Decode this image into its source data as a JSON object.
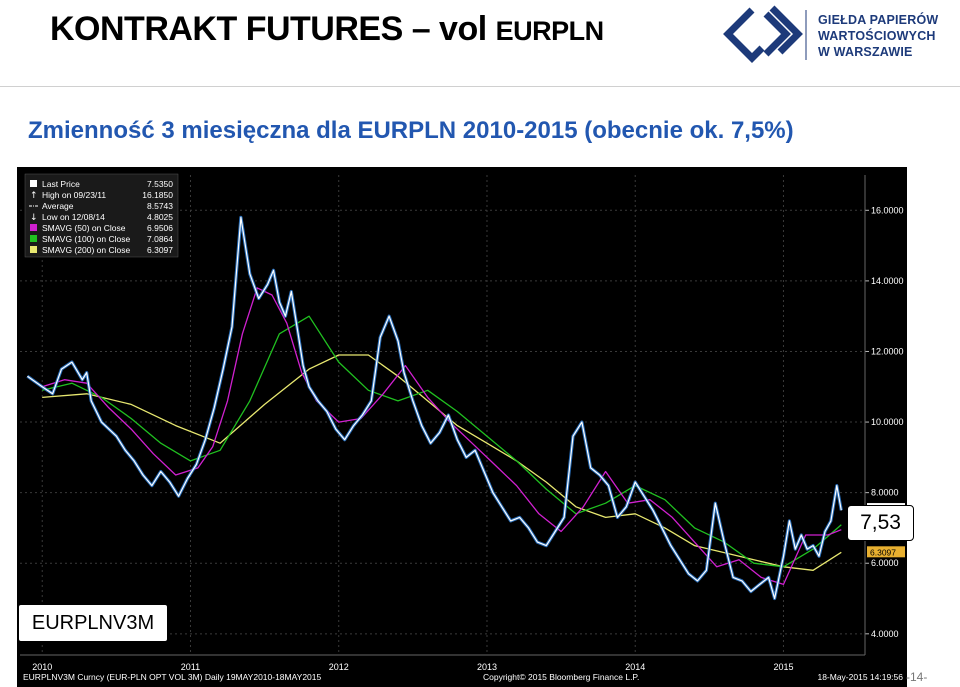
{
  "header": {
    "title_main": "KONTRAKT FUTURES – vol",
    "title_tail": "EURPLN",
    "logo_lines": [
      "GIEŁDA PAPIERÓW",
      "WARTOŚCIOWYCH",
      "W WARSZAWIE"
    ],
    "brand_color": "#1d3a7a"
  },
  "subtitle": "Zmienność 3 miesięczna dla EURPLN 2010-2015 (obecnie ok. 7,5%)",
  "callout": "7,53",
  "ticker_box": "EURPLNV3M",
  "page_number": "-14-",
  "chart_data": {
    "type": "line",
    "ylim": [
      3.4,
      17.0
    ],
    "xlim": [
      2009.85,
      2015.55
    ],
    "y_ticks": [
      4,
      6,
      8,
      10,
      12,
      14,
      16
    ],
    "y_tick_labels": [
      "4.0000",
      "6.0000",
      "8.0000",
      "10.0000",
      "12.0000",
      "14.0000",
      "16.0000"
    ],
    "x_ticks": [
      2010,
      2011,
      2012,
      2013,
      2014,
      2015
    ],
    "x_tick_labels": [
      "2010",
      "2011",
      "2012",
      "2013",
      "2014",
      "2015"
    ],
    "grid": true,
    "background": "#000000",
    "legend_position": "top-left",
    "legend": [
      {
        "label": "Last Price",
        "value": "7.5350",
        "color": "#ffffff",
        "marker": "square"
      },
      {
        "label": "High on 09/23/11",
        "value": "16.1850",
        "color": "#ffffff",
        "marker": "up-arrow"
      },
      {
        "label": "Average",
        "value": "8.5743",
        "color": "#ffffff",
        "marker": "dash-dot"
      },
      {
        "label": "Low on 12/08/14",
        "value": "4.8025",
        "color": "#ffffff",
        "marker": "down-arrow"
      },
      {
        "label": "SMAVG (50) on Close",
        "value": "6.9506",
        "color": "#d020d0",
        "marker": "square"
      },
      {
        "label": "SMAVG (100) on Close",
        "value": "7.0864",
        "color": "#20c020",
        "marker": "square"
      },
      {
        "label": "SMAVG (200) on Close",
        "value": "6.3097",
        "color": "#e8e870",
        "marker": "square"
      }
    ],
    "last_value_tags": [
      {
        "label": "6.3097",
        "value": 6.3097,
        "color": "#e8b030"
      },
      {
        "label": "7.5350",
        "value": 7.535,
        "color": "#ffffff"
      }
    ],
    "series": [
      {
        "name": "Last Price",
        "color": "#ffffff",
        "x": [
          2009.9,
          2010.0,
          2010.07,
          2010.13,
          2010.2,
          2010.27,
          2010.3,
          2010.33,
          2010.4,
          2010.45,
          2010.5,
          2010.56,
          2010.62,
          2010.68,
          2010.74,
          2010.8,
          2010.86,
          2010.92,
          2010.98,
          2011.04,
          2011.1,
          2011.16,
          2011.22,
          2011.28,
          2011.34,
          2011.4,
          2011.46,
          2011.52,
          2011.56,
          2011.6,
          2011.64,
          2011.68,
          2011.73,
          2011.76,
          2011.8,
          2011.86,
          2011.92,
          2011.98,
          2012.04,
          2012.1,
          2012.16,
          2012.22,
          2012.28,
          2012.34,
          2012.4,
          2012.44,
          2012.5,
          2012.56,
          2012.62,
          2012.68,
          2012.74,
          2012.8,
          2012.86,
          2012.92,
          2012.98,
          2013.04,
          2013.1,
          2013.16,
          2013.22,
          2013.28,
          2013.34,
          2013.4,
          2013.46,
          2013.52,
          2013.58,
          2013.64,
          2013.7,
          2013.76,
          2013.82,
          2013.88,
          2013.94,
          2014.0,
          2014.06,
          2014.12,
          2014.18,
          2014.24,
          2014.3,
          2014.36,
          2014.42,
          2014.48,
          2014.54,
          2014.6,
          2014.66,
          2014.72,
          2014.78,
          2014.84,
          2014.9,
          2014.94,
          2015.0,
          2015.04,
          2015.08,
          2015.12,
          2015.16,
          2015.2,
          2015.24,
          2015.28,
          2015.32,
          2015.36,
          2015.39
        ],
        "y": [
          11.3,
          11.0,
          10.8,
          11.5,
          11.7,
          11.2,
          11.4,
          10.6,
          10.0,
          9.8,
          9.6,
          9.2,
          8.9,
          8.5,
          8.2,
          8.6,
          8.3,
          7.9,
          8.4,
          8.8,
          9.5,
          10.4,
          11.5,
          12.7,
          15.8,
          14.2,
          13.5,
          13.9,
          14.3,
          13.4,
          13.0,
          13.7,
          12.4,
          11.6,
          11.0,
          10.6,
          10.3,
          9.8,
          9.5,
          9.9,
          10.2,
          10.6,
          12.4,
          13.0,
          12.3,
          11.4,
          10.6,
          9.9,
          9.4,
          9.7,
          10.2,
          9.5,
          9.0,
          9.2,
          8.6,
          8.0,
          7.6,
          7.2,
          7.3,
          7.0,
          6.6,
          6.5,
          6.9,
          7.3,
          9.6,
          10.0,
          8.7,
          8.5,
          8.2,
          7.3,
          7.6,
          8.3,
          7.9,
          7.5,
          7.0,
          6.5,
          6.1,
          5.7,
          5.5,
          5.8,
          7.7,
          6.6,
          5.6,
          5.5,
          5.2,
          5.4,
          5.6,
          5.0,
          6.2,
          7.2,
          6.4,
          6.8,
          6.4,
          6.5,
          6.2,
          6.9,
          7.2,
          8.2,
          7.5
        ]
      },
      {
        "name": "SMAVG (50) on Close",
        "color": "#d020d0",
        "x": [
          2010.0,
          2010.15,
          2010.3,
          2010.45,
          2010.6,
          2010.75,
          2010.9,
          2011.05,
          2011.15,
          2011.25,
          2011.35,
          2011.45,
          2011.55,
          2011.65,
          2011.75,
          2011.85,
          2012.0,
          2012.15,
          2012.3,
          2012.45,
          2012.6,
          2012.75,
          2012.9,
          2013.05,
          2013.2,
          2013.35,
          2013.5,
          2013.65,
          2013.8,
          2013.95,
          2014.1,
          2014.25,
          2014.4,
          2014.55,
          2014.7,
          2014.85,
          2015.0,
          2015.15,
          2015.3,
          2015.39
        ],
        "y": [
          11.0,
          11.2,
          11.1,
          10.4,
          9.8,
          9.1,
          8.5,
          8.7,
          9.3,
          10.6,
          12.5,
          13.8,
          13.6,
          12.8,
          11.4,
          10.6,
          10.0,
          10.1,
          10.8,
          11.6,
          10.7,
          10.0,
          9.4,
          8.8,
          8.2,
          7.4,
          6.9,
          7.6,
          8.6,
          7.7,
          7.8,
          7.3,
          6.6,
          5.9,
          6.1,
          5.6,
          5.4,
          6.8,
          6.8,
          6.95
        ]
      },
      {
        "name": "SMAVG (100) on Close",
        "color": "#20c020",
        "x": [
          2010.0,
          2010.2,
          2010.4,
          2010.6,
          2010.8,
          2011.0,
          2011.2,
          2011.4,
          2011.6,
          2011.8,
          2012.0,
          2012.2,
          2012.4,
          2012.6,
          2012.8,
          2013.0,
          2013.2,
          2013.4,
          2013.6,
          2013.8,
          2014.0,
          2014.2,
          2014.4,
          2014.6,
          2014.8,
          2015.0,
          2015.2,
          2015.39
        ],
        "y": [
          10.9,
          11.1,
          10.7,
          10.1,
          9.4,
          8.9,
          9.2,
          10.6,
          12.5,
          13.0,
          11.7,
          10.9,
          10.6,
          10.9,
          10.3,
          9.6,
          8.9,
          8.1,
          7.4,
          7.7,
          8.2,
          7.8,
          7.0,
          6.6,
          6.0,
          5.9,
          6.4,
          7.09
        ]
      },
      {
        "name": "SMAVG (200) on Close",
        "color": "#e8e870",
        "x": [
          2010.0,
          2010.3,
          2010.6,
          2010.9,
          2011.2,
          2011.5,
          2011.8,
          2012.0,
          2012.2,
          2012.4,
          2012.6,
          2012.8,
          2013.0,
          2013.2,
          2013.4,
          2013.6,
          2013.8,
          2014.0,
          2014.2,
          2014.4,
          2014.6,
          2014.8,
          2015.0,
          2015.2,
          2015.39
        ],
        "y": [
          10.7,
          10.8,
          10.5,
          9.9,
          9.4,
          10.5,
          11.5,
          11.9,
          11.9,
          11.3,
          10.6,
          9.9,
          9.4,
          8.9,
          8.3,
          7.6,
          7.3,
          7.4,
          7.0,
          6.5,
          6.3,
          6.1,
          5.9,
          5.8,
          6.31
        ]
      }
    ]
  },
  "footer": {
    "left": "EURPLNV3M Curncy (EUR-PLN OPT VOL 3M)  Daily 19MAY2010-18MAY2015",
    "center": "Copyright© 2015 Bloomberg Finance L.P.",
    "right": "18-May-2015 14:19:56"
  }
}
